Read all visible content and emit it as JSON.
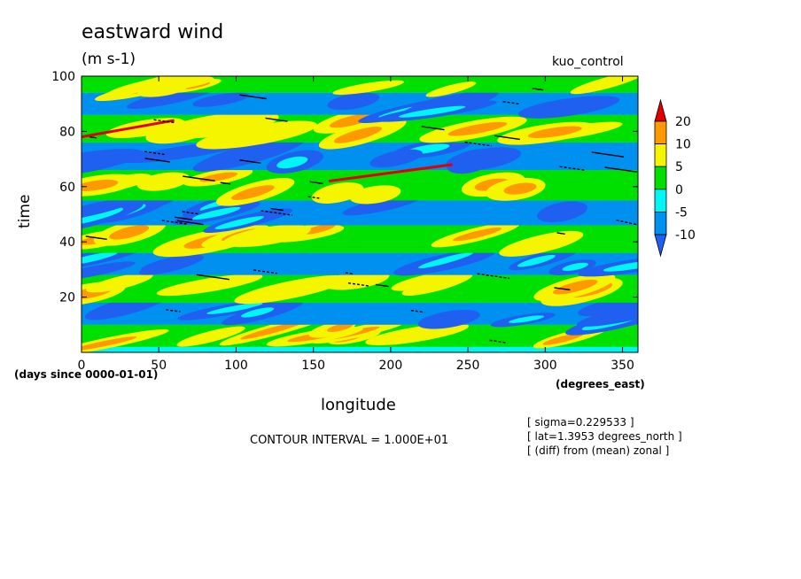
{
  "header": {
    "title": "eastward wind",
    "units": "(m s-1)",
    "dataset": "kuo_control"
  },
  "axes": {
    "xlabel": "longitude",
    "xunits": "(degrees_east)",
    "ylabel": "time",
    "time_units": "(days since 0000-01-01)"
  },
  "footer": {
    "contour_interval": "CONTOUR INTERVAL = 1.000E+01",
    "notes": [
      "[ sigma=0.229533 ]",
      "[ lat=1.3953 degrees_north ]",
      "[ (diff) from (mean) zonal ]"
    ]
  },
  "chart_data": {
    "type": "heatmap",
    "title": "eastward wind",
    "units": "(m s-1)",
    "xlabel": "longitude",
    "ylabel": "time",
    "xlim": [
      0,
      360
    ],
    "ylim": [
      0,
      100
    ],
    "xticks": [
      0,
      50,
      100,
      150,
      200,
      250,
      300,
      350
    ],
    "yticks": [
      20,
      40,
      60,
      80,
      100
    ],
    "colorbar": {
      "levels": [
        -10,
        -5,
        0,
        5,
        10,
        20
      ],
      "labels": [
        "20",
        "10",
        "5",
        "0",
        "-5",
        "-10"
      ],
      "colors": [
        "#e00000",
        "#ff9900",
        "#f5f500",
        "#00e000",
        "#00f5f5",
        "#0090f0",
        "#2060f0"
      ]
    },
    "contour_lines": [
      10
    ],
    "colors": {
      "strong_negative": "#2060f0",
      "negative": "#0090f0",
      "weak_negative": "#00f5f5",
      "weak_positive": "#00e000",
      "positive": "#f5f500",
      "strong_positive": "#ff9900",
      "extreme": "#e00000"
    },
    "bands": [
      {
        "sign": "positive",
        "t_start": 2,
        "t_end": 10,
        "lon_start": 0,
        "lon_end": 360
      },
      {
        "sign": "negative",
        "t_start": 10,
        "t_end": 18,
        "lon_start": 0,
        "lon_end": 360
      },
      {
        "sign": "positive",
        "t_start": 18,
        "t_end": 28,
        "lon_start": 0,
        "lon_end": 360
      },
      {
        "sign": "negative",
        "t_start": 28,
        "t_end": 36,
        "lon_start": 0,
        "lon_end": 360
      },
      {
        "sign": "positive",
        "t_start": 36,
        "t_end": 46,
        "lon_start": 0,
        "lon_end": 360
      },
      {
        "sign": "negative",
        "t_start": 46,
        "t_end": 55,
        "lon_start": 0,
        "lon_end": 360
      },
      {
        "sign": "positive",
        "t_start": 55,
        "t_end": 66,
        "lon_start": 0,
        "lon_end": 360
      },
      {
        "sign": "negative",
        "t_start": 66,
        "t_end": 76,
        "lon_start": 0,
        "lon_end": 360
      },
      {
        "sign": "positive",
        "t_start": 76,
        "t_end": 86,
        "lon_start": 0,
        "lon_end": 360
      },
      {
        "sign": "negative",
        "t_start": 86,
        "t_end": 94,
        "lon_start": 0,
        "lon_end": 360
      },
      {
        "sign": "positive",
        "t_start": 94,
        "t_end": 100,
        "lon_start": 0,
        "lon_end": 360
      }
    ]
  }
}
